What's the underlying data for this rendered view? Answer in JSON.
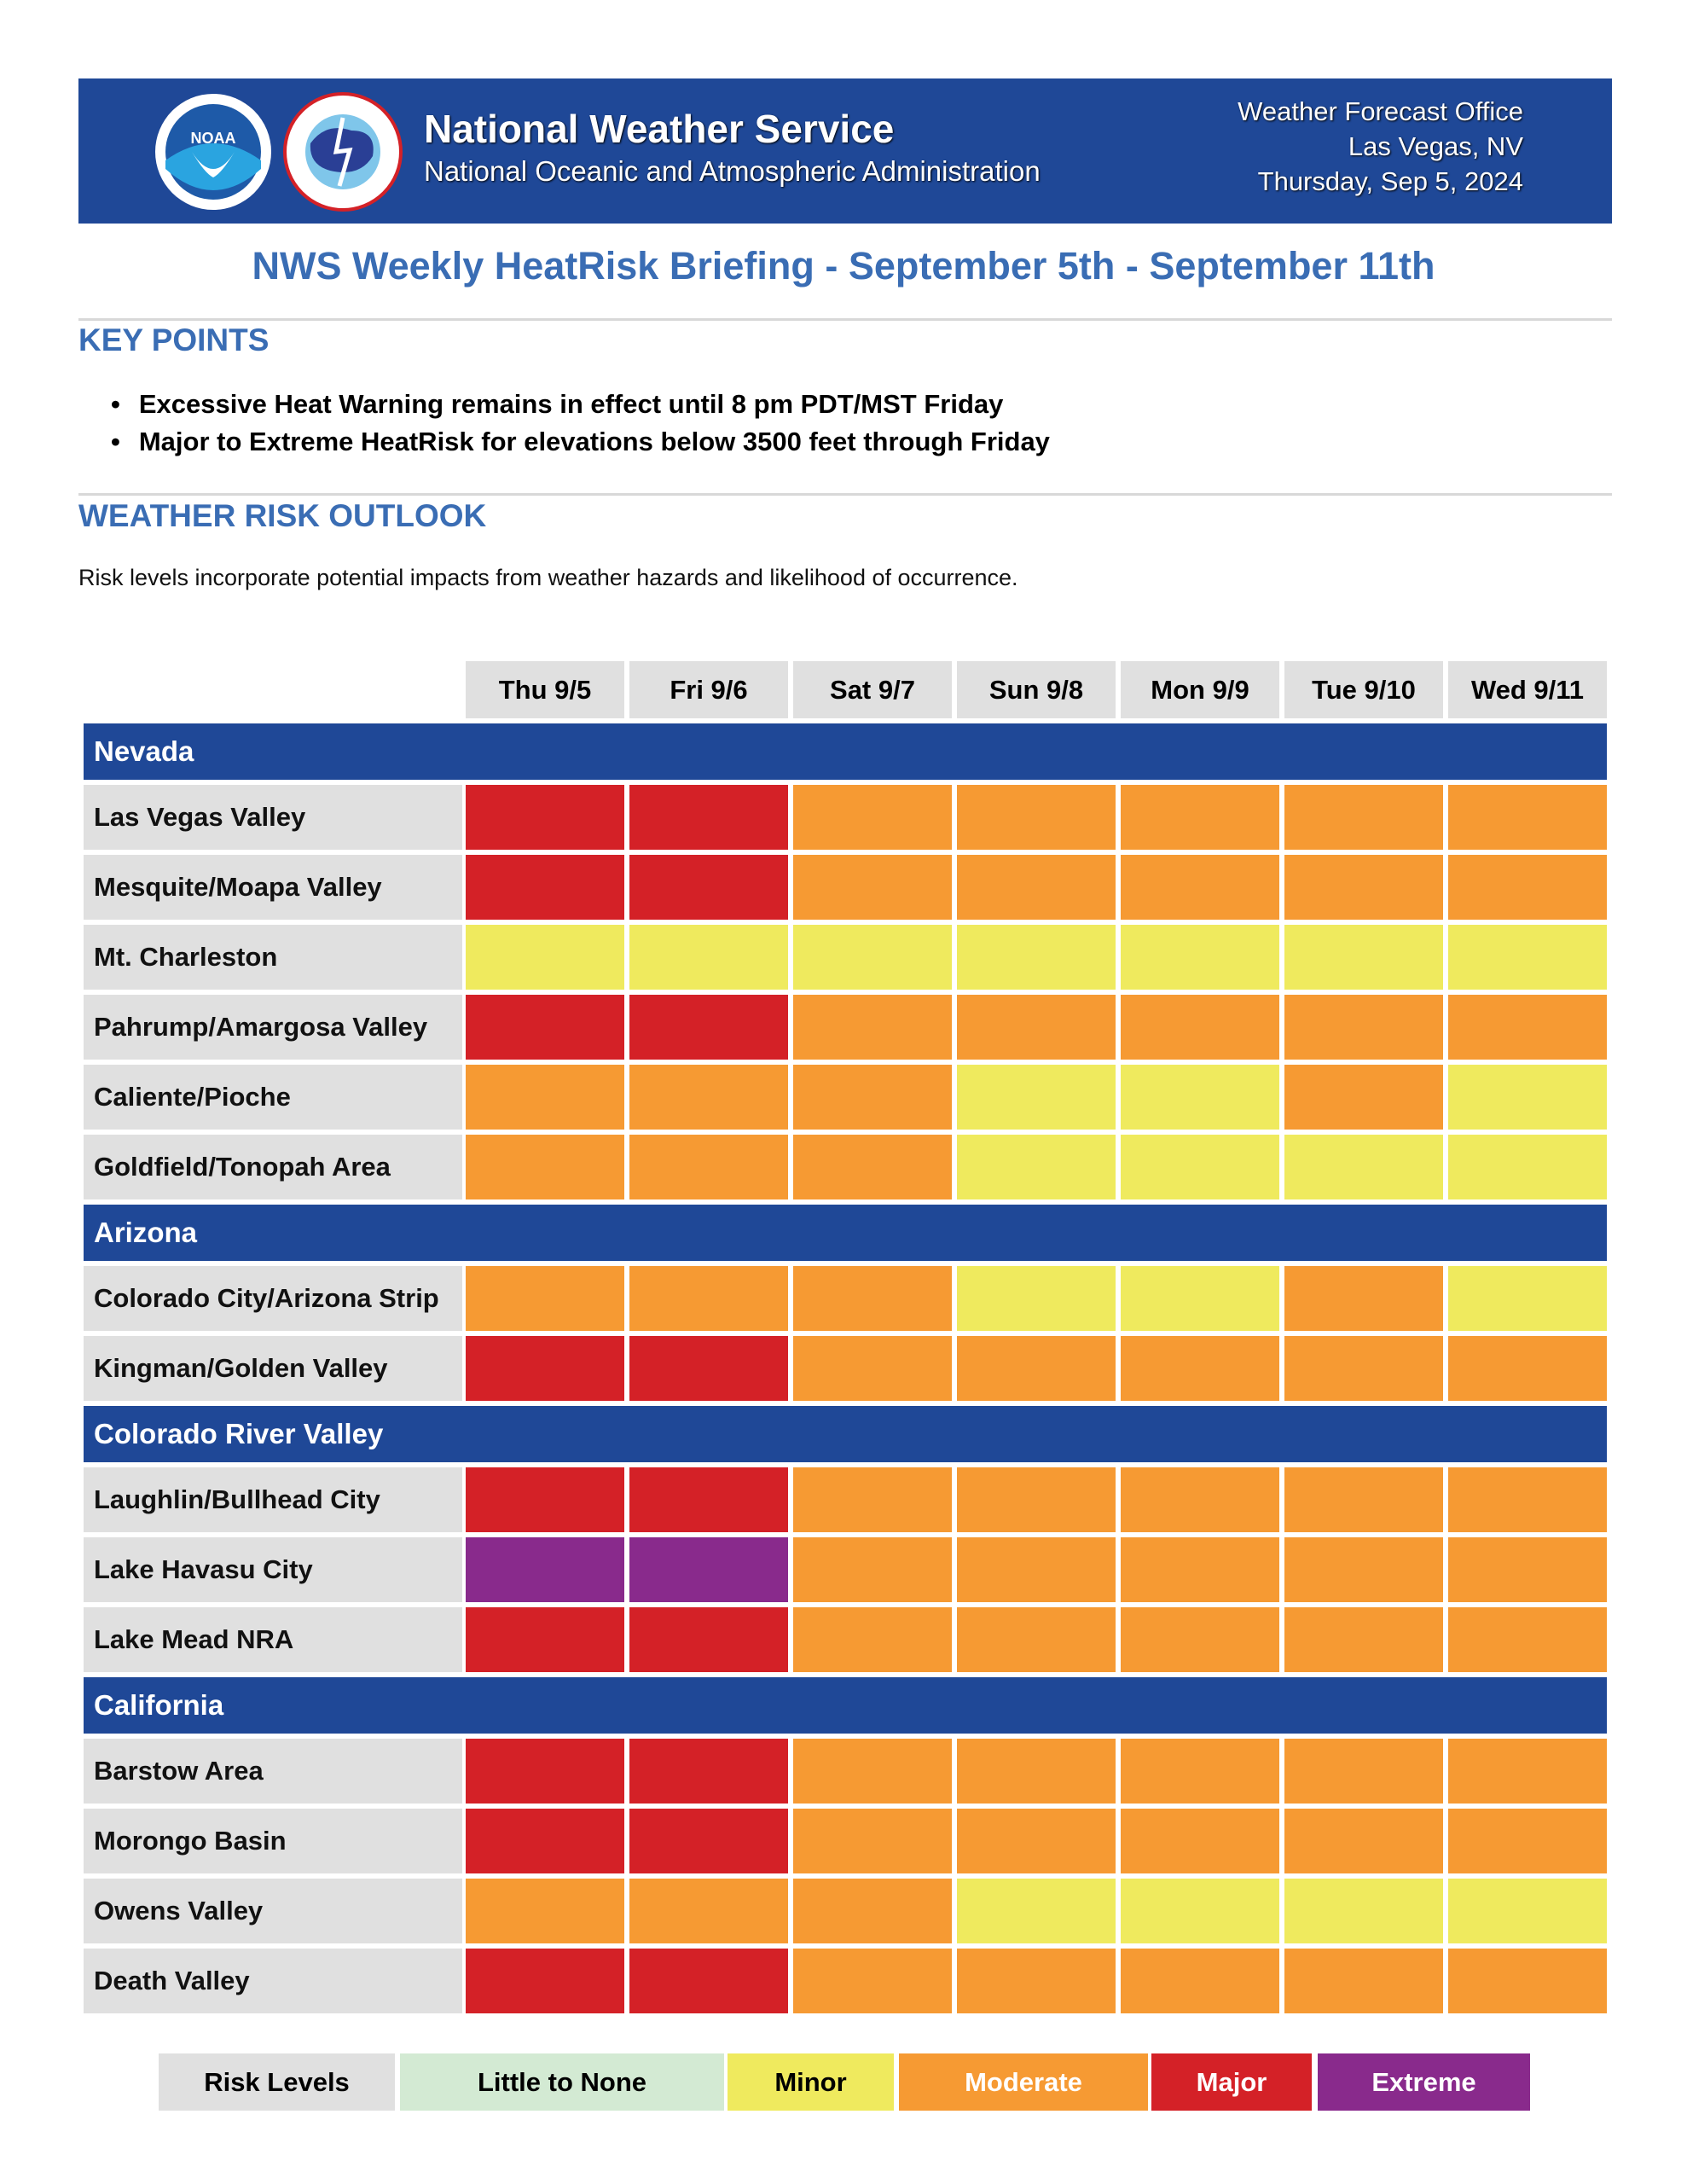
{
  "header": {
    "title": "National Weather Service",
    "subtitle": "National Oceanic and Atmospheric Administration",
    "office_line1": "Weather Forecast Office",
    "office_line2": "Las Vegas, NV",
    "date": "Thursday, Sep 5, 2024",
    "logos": [
      "NOAA",
      "NATIONAL WEATHER SERVICE"
    ]
  },
  "page_title": "NWS Weekly HeatRisk Briefing - September 5th - September 11th",
  "key_points": {
    "heading": "KEY POINTS",
    "items": [
      "Excessive Heat Warning remains in effect until 8 pm PDT/MST Friday",
      "Major to Extreme HeatRisk for elevations below 3500 feet through Friday"
    ]
  },
  "outlook": {
    "heading": "WEATHER RISK OUTLOOK",
    "note": "Risk levels incorporate potential impacts from weather hazards and likelihood of occurrence."
  },
  "days": [
    "Thu 9/5",
    "Fri 9/6",
    "Sat 9/7",
    "Sun 9/8",
    "Mon 9/9",
    "Tue 9/10",
    "Wed 9/11"
  ],
  "colors": {
    "none": "#d3ead3",
    "minor": "#efea5e",
    "moderate": "#f69a33",
    "major": "#d42127",
    "extreme": "#892a8c",
    "navy": "#1f4897"
  },
  "regions": [
    {
      "name": "Nevada",
      "rows": [
        {
          "area": "Las Vegas Valley",
          "risk": [
            "major",
            "major",
            "moderate",
            "moderate",
            "moderate",
            "moderate",
            "moderate"
          ]
        },
        {
          "area": "Mesquite/Moapa Valley",
          "risk": [
            "major",
            "major",
            "moderate",
            "moderate",
            "moderate",
            "moderate",
            "moderate"
          ]
        },
        {
          "area": "Mt. Charleston",
          "risk": [
            "minor",
            "minor",
            "minor",
            "minor",
            "minor",
            "minor",
            "minor"
          ]
        },
        {
          "area": "Pahrump/Amargosa Valley",
          "risk": [
            "major",
            "major",
            "moderate",
            "moderate",
            "moderate",
            "moderate",
            "moderate"
          ]
        },
        {
          "area": "Caliente/Pioche",
          "risk": [
            "moderate",
            "moderate",
            "moderate",
            "minor",
            "minor",
            "moderate",
            "minor"
          ]
        },
        {
          "area": "Goldfield/Tonopah Area",
          "risk": [
            "moderate",
            "moderate",
            "moderate",
            "minor",
            "minor",
            "minor",
            "minor"
          ]
        }
      ]
    },
    {
      "name": "Arizona",
      "rows": [
        {
          "area": "Colorado City/Arizona Strip",
          "risk": [
            "moderate",
            "moderate",
            "moderate",
            "minor",
            "minor",
            "moderate",
            "minor"
          ]
        },
        {
          "area": "Kingman/Golden Valley",
          "risk": [
            "major",
            "major",
            "moderate",
            "moderate",
            "moderate",
            "moderate",
            "moderate"
          ]
        }
      ]
    },
    {
      "name": "Colorado River Valley",
      "rows": [
        {
          "area": "Laughlin/Bullhead City",
          "risk": [
            "major",
            "major",
            "moderate",
            "moderate",
            "moderate",
            "moderate",
            "moderate"
          ]
        },
        {
          "area": "Lake Havasu City",
          "risk": [
            "extreme",
            "extreme",
            "moderate",
            "moderate",
            "moderate",
            "moderate",
            "moderate"
          ]
        },
        {
          "area": "Lake Mead NRA",
          "risk": [
            "major",
            "major",
            "moderate",
            "moderate",
            "moderate",
            "moderate",
            "moderate"
          ]
        }
      ]
    },
    {
      "name": "California",
      "rows": [
        {
          "area": "Barstow Area",
          "risk": [
            "major",
            "major",
            "moderate",
            "moderate",
            "moderate",
            "moderate",
            "moderate"
          ]
        },
        {
          "area": "Morongo Basin",
          "risk": [
            "major",
            "major",
            "moderate",
            "moderate",
            "moderate",
            "moderate",
            "moderate"
          ]
        },
        {
          "area": "Owens Valley",
          "risk": [
            "moderate",
            "moderate",
            "moderate",
            "minor",
            "minor",
            "minor",
            "minor"
          ]
        },
        {
          "area": "Death Valley",
          "risk": [
            "major",
            "major",
            "moderate",
            "moderate",
            "moderate",
            "moderate",
            "moderate"
          ]
        }
      ]
    }
  ],
  "legend": {
    "title": "Risk Levels",
    "none": "Little to None",
    "minor": "Minor",
    "moderate": "Moderate",
    "major": "Major",
    "extreme": "Extreme"
  }
}
